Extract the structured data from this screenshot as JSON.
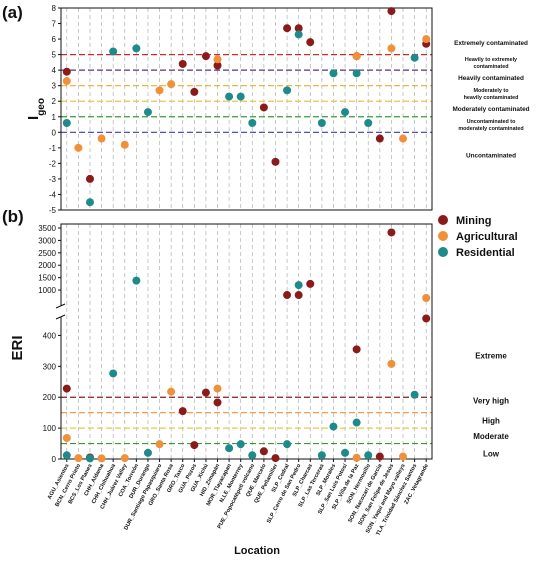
{
  "figure": {
    "xlabel": "Location",
    "locations": [
      "AGU_Asientos",
      "BCN_Cerro Prieto",
      "BCS_Los Planes",
      "CHH_Aldama",
      "CHH_Chihuahua",
      "CHH_Juárez Valley",
      "COA_Torreón",
      "DUR_Durango",
      "DUR_Santiago Papasquiaro",
      "GRO_Santa Rosa",
      "GRO_Taxco",
      "GUA_Pozos",
      "GUA_Xichú",
      "HID_Zimapán",
      "MOR_Tlayacapan",
      "N.LE_Monterrey",
      "PUE_Popocatépetl volcano",
      "QUE_Marcelo",
      "QUE_Peñamiller",
      "SLP_Cedral",
      "SLP_Cerro de San Pedro",
      "SLP_Charcas",
      "SLP_Las Terceras",
      "SLP_Morales",
      "SLP_San Luis Potosí",
      "SLP_Villa de la Paz",
      "SON_Hermosillo",
      "SON_Nacozari de García",
      "SON_San Felipe de Jesús",
      "SON_Yaqui and Mayo valleys",
      "TLA_Trinidad Sánchez Santos",
      "ZAC_Vetagrande"
    ],
    "legend": [
      {
        "name": "Mining",
        "color": "#8b1a1a"
      },
      {
        "name": "Agricultural",
        "color": "#f0903a"
      },
      {
        "name": "Residential",
        "color": "#1f8a8a"
      }
    ]
  },
  "chart_data": [
    {
      "panel_label": "(a)",
      "type": "scatter",
      "ylabel": "Igeo",
      "ylim": [
        -5,
        8
      ],
      "yticks": [
        -5,
        -4,
        -3,
        -2,
        -1,
        0,
        1,
        2,
        3,
        4,
        5,
        6,
        7,
        8
      ],
      "threshold_lines": [
        {
          "y": 5,
          "color": "#cc2a2a"
        },
        {
          "y": 4,
          "color": "#5a2e8a"
        },
        {
          "y": 3,
          "color": "#e8b02a"
        },
        {
          "y": 2,
          "color": "#e8c84a"
        },
        {
          "y": 1,
          "color": "#3a9a3a"
        },
        {
          "y": 0,
          "color": "#3a3ab0"
        }
      ],
      "class_labels": [
        {
          "text": "Extremely contaminated",
          "y": 5.75
        },
        {
          "text": "Heavily to extremely contaminated",
          "y": 4.5
        },
        {
          "text": "Heavily contaminated",
          "y": 3.5
        },
        {
          "text": "Moderately to heavily contaminated",
          "y": 2.5
        },
        {
          "text": "Moderately contaminated",
          "y": 1.5
        },
        {
          "text": "Uncontaminated to moderately contaminated",
          "y": 0.5
        },
        {
          "text": "Uncontaminated",
          "y": -1.5
        }
      ],
      "series": [
        {
          "name": "Mining",
          "points": [
            [
              0,
              3.9
            ],
            [
              2,
              -3.0
            ],
            [
              10,
              4.4
            ],
            [
              11,
              2.6
            ],
            [
              12,
              4.9
            ],
            [
              13,
              4.3
            ],
            [
              17,
              1.6
            ],
            [
              18,
              -1.9
            ],
            [
              19,
              6.7
            ],
            [
              20,
              6.7
            ],
            [
              21,
              5.8
            ],
            [
              25,
              4.9
            ],
            [
              27,
              -0.4
            ],
            [
              28,
              7.8
            ],
            [
              31,
              5.7
            ]
          ]
        },
        {
          "name": "Agricultural",
          "points": [
            [
              0,
              3.3
            ],
            [
              1,
              -1.0
            ],
            [
              3,
              -0.4
            ],
            [
              5,
              -0.8
            ],
            [
              8,
              2.7
            ],
            [
              9,
              3.1
            ],
            [
              13,
              4.7
            ],
            [
              25,
              4.9
            ],
            [
              28,
              5.4
            ],
            [
              29,
              -0.4
            ],
            [
              31,
              6.0
            ]
          ]
        },
        {
          "name": "Residential",
          "points": [
            [
              0,
              0.6
            ],
            [
              2,
              -4.5
            ],
            [
              4,
              5.2
            ],
            [
              6,
              5.4
            ],
            [
              7,
              1.3
            ],
            [
              14,
              2.3
            ],
            [
              15,
              2.3
            ],
            [
              16,
              0.6
            ],
            [
              19,
              2.7
            ],
            [
              20,
              6.3
            ],
            [
              22,
              0.6
            ],
            [
              23,
              3.8
            ],
            [
              24,
              1.3
            ],
            [
              25,
              3.8
            ],
            [
              26,
              0.6
            ],
            [
              30,
              4.8
            ]
          ]
        }
      ]
    },
    {
      "panel_label": "(b)",
      "type": "scatter",
      "ylabel": "ERI",
      "y_axis_break": true,
      "lower_ylim": [
        0,
        450
      ],
      "lower_yticks": [
        0,
        100,
        200,
        300,
        400
      ],
      "upper_ylim": [
        600,
        3500
      ],
      "upper_yticks": [
        1000,
        1500,
        2000,
        2500,
        3000,
        3500
      ],
      "threshold_lines": [
        {
          "y": 200,
          "color": "#8b1a1a"
        },
        {
          "y": 150,
          "color": "#f0903a"
        },
        {
          "y": 100,
          "color": "#e8c84a"
        },
        {
          "y": 50,
          "color": "#3a9a3a"
        }
      ],
      "class_labels": [
        {
          "text": "Extreme",
          "y": 335
        },
        {
          "text": "Very high",
          "y": 190
        },
        {
          "text": "High",
          "y": 125
        },
        {
          "text": "Moderate",
          "y": 75
        },
        {
          "text": "Low",
          "y": 18
        }
      ],
      "series": [
        {
          "name": "Mining",
          "points": [
            [
              0,
              228
            ],
            [
              2,
              5
            ],
            [
              10,
              155
            ],
            [
              11,
              45
            ],
            [
              12,
              215
            ],
            [
              13,
              183
            ],
            [
              17,
              25
            ],
            [
              18,
              3
            ],
            [
              19,
              800
            ],
            [
              20,
              800
            ],
            [
              21,
              1250
            ],
            [
              25,
              355
            ],
            [
              27,
              8
            ],
            [
              28,
              3320
            ],
            [
              31,
              455
            ]
          ]
        },
        {
          "name": "Agricultural",
          "points": [
            [
              0,
              68
            ],
            [
              1,
              3
            ],
            [
              3,
              2
            ],
            [
              5,
              3
            ],
            [
              8,
              48
            ],
            [
              9,
              218
            ],
            [
              13,
              228
            ],
            [
              25,
              4
            ],
            [
              28,
              308
            ],
            [
              29,
              8
            ],
            [
              31,
              680
            ]
          ]
        },
        {
          "name": "Residential",
          "points": [
            [
              0,
              12
            ],
            [
              2,
              2
            ],
            [
              4,
              277
            ],
            [
              6,
              1380
            ],
            [
              7,
              20
            ],
            [
              14,
              35
            ],
            [
              15,
              48
            ],
            [
              16,
              12
            ],
            [
              19,
              48
            ],
            [
              20,
              1200
            ],
            [
              22,
              12
            ],
            [
              23,
              105
            ],
            [
              24,
              20
            ],
            [
              25,
              118
            ],
            [
              26,
              12
            ],
            [
              30,
              208
            ]
          ]
        }
      ]
    }
  ]
}
